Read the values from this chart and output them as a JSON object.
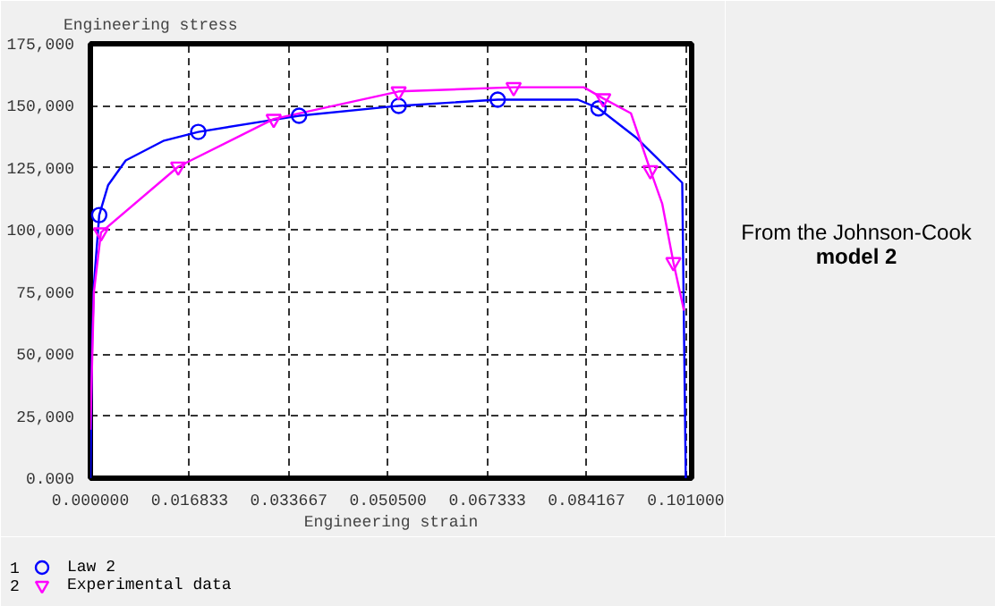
{
  "chart_data": {
    "type": "line",
    "ylabel": "Engineering stress",
    "xlabel": "Engineering strain",
    "xlim": [
      0,
      0.102
    ],
    "ylim": [
      0,
      175000
    ],
    "xticks": [
      {
        "value": 0,
        "label": "0.000000"
      },
      {
        "value": 0.016833,
        "label": "0.016833"
      },
      {
        "value": 0.033667,
        "label": "0.033667"
      },
      {
        "value": 0.0505,
        "label": "0.050500"
      },
      {
        "value": 0.067333,
        "label": "0.067333"
      },
      {
        "value": 0.084167,
        "label": "0.084167"
      },
      {
        "value": 0.101,
        "label": "0.101000"
      }
    ],
    "yticks": [
      {
        "value": 0,
        "label": "0.000"
      },
      {
        "value": 25000,
        "label": "25,000"
      },
      {
        "value": 50000,
        "label": "50,000"
      },
      {
        "value": 75000,
        "label": "75,000"
      },
      {
        "value": 100000,
        "label": "100,000"
      },
      {
        "value": 125000,
        "label": "125,000"
      },
      {
        "value": 150000,
        "label": "150,000"
      },
      {
        "value": 175000,
        "label": "175,000"
      }
    ],
    "grid": true,
    "legend": "bottom",
    "series": [
      {
        "color": "#0000ff",
        "x": [
          0,
          0.0003,
          0.0006,
          0.0015,
          0.003,
          0.006,
          0.0125,
          0.0183,
          0.03,
          0.0354,
          0.0523,
          0.0691,
          0.0827,
          0.0862,
          0.0927,
          0.1004,
          0.101
        ],
        "values": [
          0,
          55000,
          78000,
          106000,
          118000,
          128000,
          136000,
          139500,
          144000,
          146000,
          150000,
          152500,
          152500,
          149000,
          137000,
          119000,
          0
        ]
      },
      {
        "color": "#ff00ff",
        "x": [
          0,
          0.0006,
          0.0018,
          0.0149,
          0.0311,
          0.0523,
          0.0718,
          0.0837,
          0.087,
          0.0917,
          0.095,
          0.097,
          0.0989,
          0.1007
        ],
        "values": [
          19500,
          75000,
          99000,
          125500,
          144700,
          155800,
          157500,
          157500,
          153000,
          147000,
          124000,
          110600,
          87000,
          67500
        ]
      },
      {
        "type": "scatter",
        "name": "Law 2",
        "marker": "circle",
        "color": "#0000ff",
        "x": [
          0.0015,
          0.0183,
          0.0354,
          0.0523,
          0.0691,
          0.0862
        ],
        "values": [
          106000,
          139500,
          146000,
          150000,
          152500,
          149000
        ]
      },
      {
        "type": "scatter",
        "name": "Experimental data",
        "marker": "triangle",
        "color": "#ff00ff",
        "x": [
          0.0018,
          0.0149,
          0.0311,
          0.0523,
          0.0718,
          0.087,
          0.095,
          0.0989
        ],
        "values": [
          99000,
          125500,
          144700,
          155800,
          157500,
          153000,
          124000,
          87000
        ]
      }
    ],
    "annotations": [
      "From the Johnson-Cook",
      "model 2",
      "1",
      "2"
    ]
  }
}
